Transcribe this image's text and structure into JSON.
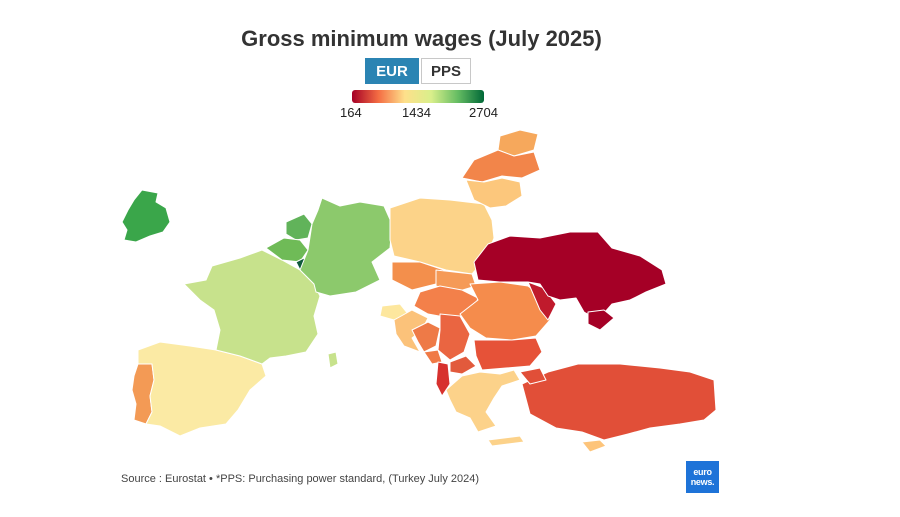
{
  "title": "Gross minimum wages (July 2025)",
  "toggle": {
    "options": [
      "EUR",
      "PPS"
    ],
    "selected": "EUR"
  },
  "scale": {
    "min_label": "164",
    "mid_label": "1434",
    "max_label": "2704",
    "min": 164,
    "mid": 1434,
    "max": 2704
  },
  "colors": {
    "darkred": "#a50026",
    "red": "#e24b3b",
    "orange": "#f6894a",
    "lightorange": "#fdb863",
    "peach": "#fdd28a",
    "cream": "#fbe9a3",
    "lightgreen": "#c8e48a",
    "green": "#8fcc6b",
    "midgreen": "#6fbb57",
    "darkgreen": "#1a7f3c",
    "border": "#ffffff"
  },
  "source": "Source : Eurostat • *PPS: Purchasing power standard, (Turkey July 2024)",
  "logo": {
    "line1": "euro",
    "line2": "news."
  }
}
